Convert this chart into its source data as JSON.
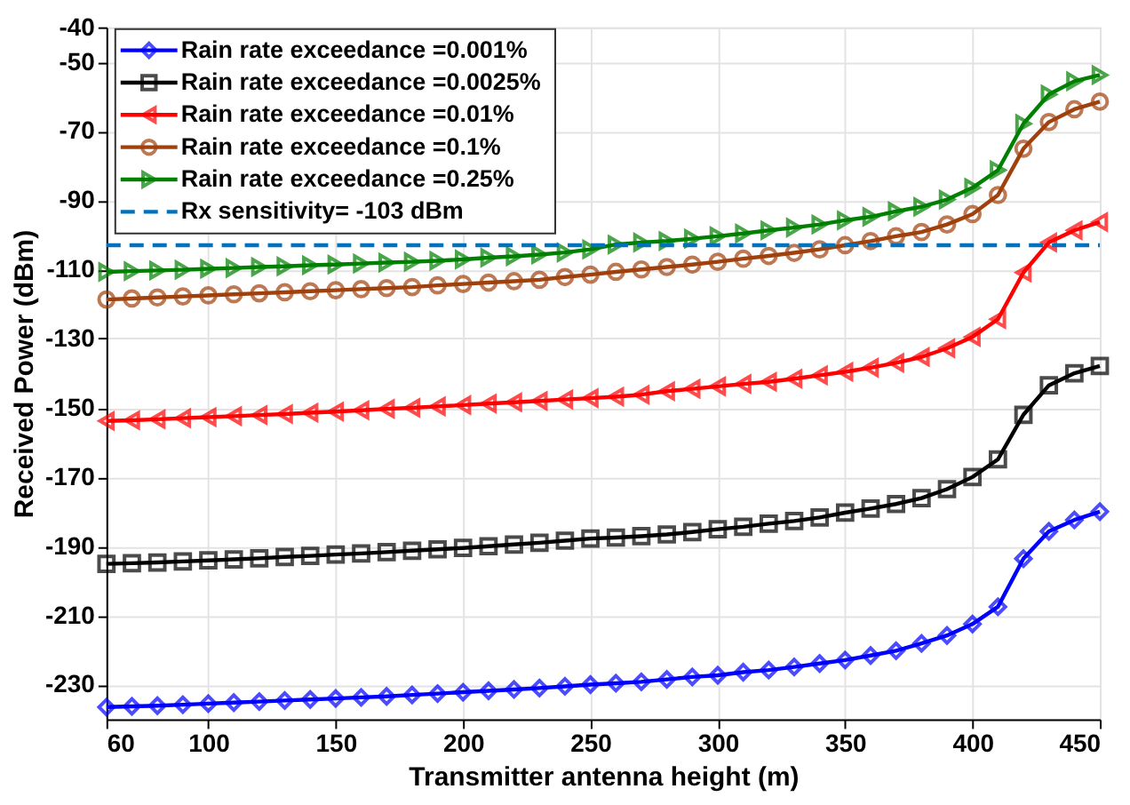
{
  "chart_data": {
    "type": "line",
    "xlabel": "Transmitter antenna height (m)",
    "ylabel": "Received Power (dBm)",
    "x": [
      60,
      70,
      80,
      90,
      100,
      110,
      120,
      130,
      140,
      150,
      160,
      170,
      180,
      190,
      200,
      210,
      220,
      230,
      240,
      250,
      260,
      270,
      280,
      290,
      300,
      310,
      320,
      330,
      340,
      350,
      360,
      370,
      380,
      390,
      400,
      410,
      420,
      430,
      440,
      450
    ],
    "series": [
      {
        "name": "Rain rate exceedance =0.001%",
        "color": "#0000ff",
        "marker": "diamond",
        "values": [
          -236.5,
          -236.3,
          -236.1,
          -235.8,
          -235.5,
          -235.2,
          -234.9,
          -234.6,
          -234.3,
          -234,
          -233.7,
          -233.4,
          -233,
          -232.6,
          -232.2,
          -231.8,
          -231.4,
          -231,
          -230.5,
          -230,
          -229.6,
          -229.2,
          -228.5,
          -227.8,
          -227.3,
          -226.4,
          -225.8,
          -224.9,
          -223.9,
          -222.9,
          -221.6,
          -220.2,
          -218.1,
          -215.8,
          -212.5,
          -207.5,
          -193.6,
          -185.7,
          -182.4,
          -180
        ]
      },
      {
        "name": "Rain rate exceedance =0.0025%",
        "color": "#000000",
        "marker": "square",
        "values": [
          -195.1,
          -194.9,
          -194.7,
          -194.4,
          -194.1,
          -193.8,
          -193.5,
          -193.1,
          -192.8,
          -192.4,
          -192.1,
          -191.7,
          -191.3,
          -190.9,
          -190.5,
          -190,
          -189.5,
          -189,
          -188.4,
          -187.8,
          -187.5,
          -187.1,
          -186.6,
          -185.9,
          -185.1,
          -184.4,
          -183.5,
          -182.7,
          -181.7,
          -180.3,
          -179.1,
          -177.8,
          -176.1,
          -173.5,
          -170,
          -164.9,
          -152,
          -143.5,
          -140,
          -137.9
        ]
      },
      {
        "name": "Rain rate exceedance =0.01%",
        "color": "#ff0000",
        "marker": "triangle-left",
        "values": [
          -153.8,
          -153.6,
          -153.3,
          -153,
          -152.7,
          -152.4,
          -152.1,
          -151.8,
          -151.4,
          -151.1,
          -150.7,
          -150.3,
          -150,
          -149.6,
          -149.2,
          -148.8,
          -148.4,
          -148,
          -147.6,
          -147.2,
          -146.8,
          -146.2,
          -145.2,
          -144.5,
          -143.8,
          -143.1,
          -142.5,
          -141.6,
          -140.6,
          -139.6,
          -138.4,
          -137,
          -135.3,
          -132.8,
          -129.5,
          -124.4,
          -110.9,
          -102.2,
          -98.7,
          -96.3
        ]
      },
      {
        "name": "Rain rate exceedance =0.1%",
        "color": "#a0410d",
        "marker": "circle",
        "values": [
          -118.7,
          -118.4,
          -118.1,
          -117.8,
          -117.5,
          -117.2,
          -116.9,
          -116.6,
          -116.3,
          -116,
          -115.7,
          -115.4,
          -115.1,
          -114.6,
          -114.2,
          -113.8,
          -113.4,
          -113,
          -112.2,
          -111.5,
          -110.7,
          -110,
          -109.3,
          -108.6,
          -107.8,
          -106.9,
          -106.1,
          -105.2,
          -104.2,
          -103,
          -101.8,
          -100.4,
          -99.2,
          -97,
          -94,
          -88.5,
          -75.1,
          -67.4,
          -63.7,
          -61.5
        ]
      },
      {
        "name": "Rain rate exceedance =0.25%",
        "color": "#008000",
        "marker": "triangle-right",
        "values": [
          -110.7,
          -110.5,
          -110.3,
          -110.1,
          -109.8,
          -109.6,
          -109.3,
          -109.1,
          -108.8,
          -108.6,
          -108.3,
          -108,
          -107.8,
          -107.5,
          -107.1,
          -106.6,
          -106.2,
          -105.7,
          -105.1,
          -104.2,
          -102.8,
          -102.2,
          -101.8,
          -101.1,
          -100.4,
          -99.6,
          -98.7,
          -97.9,
          -97,
          -95.8,
          -94.8,
          -93.2,
          -91.9,
          -89.8,
          -86.4,
          -81.3,
          -67.9,
          -59.4,
          -55.6,
          -53.8
        ]
      }
    ],
    "ref_lines": [
      {
        "axis": "y",
        "value": -103,
        "label": "Rx sensitivity= -103 dBm",
        "color": "#0072bd",
        "line_style": "dashed"
      }
    ],
    "xlim": [
      60,
      450
    ],
    "xticks": [
      60,
      100,
      150,
      200,
      250,
      300,
      350,
      400,
      450
    ],
    "ylim": [
      -240,
      -40
    ],
    "yticks": [
      -40,
      -50,
      -70,
      -90,
      -110,
      -130,
      -150,
      -170,
      -190,
      -210,
      -230
    ],
    "grid": true,
    "legend": "top left",
    "line_style": "solid"
  }
}
